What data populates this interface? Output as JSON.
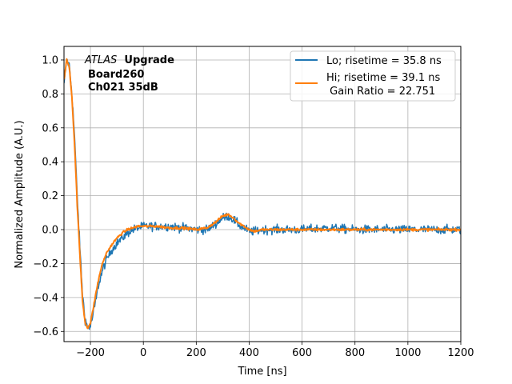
{
  "chart_data": {
    "type": "line",
    "xlabel": "Time [ns]",
    "ylabel": "Normalized Amplitude (A.U.)",
    "xlim": [
      -300,
      1200
    ],
    "ylim": [
      -0.66,
      1.08
    ],
    "xticks": [
      -200,
      0,
      200,
      400,
      600,
      800,
      1000,
      1200
    ],
    "yticks": [
      -0.6,
      -0.4,
      -0.2,
      0.0,
      0.2,
      0.4,
      0.6,
      0.8,
      1.0
    ],
    "xtick_labels": [
      "−200",
      "0",
      "200",
      "400",
      "600",
      "800",
      "1000",
      "1200"
    ],
    "ytick_labels": [
      "−0.6",
      "−0.4",
      "−0.2",
      "0.0",
      "0.2",
      "0.4",
      "0.6",
      "0.8",
      "1.0"
    ],
    "grid": true,
    "legend_position": "top-right",
    "annotation": {
      "italic": "ATLAS",
      "bold1": "Upgrade",
      "line2": "Board260",
      "line3": "Ch021 35dB"
    },
    "series": [
      {
        "name": "Lo; risetime = 35.8 ns",
        "color": "#1f77b4",
        "noise": 0.022,
        "x": [
          -300,
          -290,
          -280,
          -270,
          -260,
          -250,
          -240,
          -230,
          -220,
          -210,
          -200,
          -190,
          -180,
          -170,
          -160,
          -150,
          -140,
          -120,
          -100,
          -80,
          -60,
          -40,
          -20,
          0,
          50,
          100,
          150,
          200,
          240,
          270,
          300,
          320,
          340,
          360,
          380,
          400,
          420,
          450,
          500,
          600,
          700,
          800,
          900,
          1000,
          1100,
          1200
        ],
        "y": [
          0.85,
          1.0,
          0.97,
          0.8,
          0.55,
          0.2,
          -0.1,
          -0.38,
          -0.53,
          -0.58,
          -0.57,
          -0.5,
          -0.42,
          -0.33,
          -0.27,
          -0.22,
          -0.18,
          -0.12,
          -0.08,
          -0.05,
          -0.02,
          0.0,
          0.01,
          0.02,
          0.02,
          0.02,
          0.01,
          0.0,
          0.0,
          0.03,
          0.07,
          0.08,
          0.06,
          0.03,
          0.01,
          -0.01,
          -0.01,
          0.0,
          0.0,
          0.0,
          0.01,
          0.0,
          0.0,
          0.0,
          0.0,
          0.0
        ]
      },
      {
        "name": "Hi; risetime = 39.1 ns\n Gain Ratio = 22.751",
        "color": "#ff7f0e",
        "noise": 0.006,
        "x": [
          -300,
          -290,
          -280,
          -270,
          -260,
          -250,
          -240,
          -230,
          -220,
          -210,
          -200,
          -190,
          -180,
          -170,
          -160,
          -150,
          -140,
          -120,
          -100,
          -80,
          -60,
          -40,
          -20,
          0,
          50,
          100,
          150,
          200,
          240,
          270,
          300,
          320,
          340,
          360,
          380,
          400,
          420,
          450,
          500,
          600,
          700,
          800,
          900,
          1000,
          1100,
          1200
        ],
        "y": [
          0.88,
          1.0,
          0.96,
          0.78,
          0.5,
          0.15,
          -0.15,
          -0.42,
          -0.55,
          -0.58,
          -0.55,
          -0.47,
          -0.38,
          -0.3,
          -0.23,
          -0.18,
          -0.14,
          -0.09,
          -0.05,
          -0.02,
          0.0,
          0.01,
          0.02,
          0.02,
          0.02,
          0.01,
          0.01,
          0.0,
          0.01,
          0.04,
          0.08,
          0.09,
          0.07,
          0.04,
          0.02,
          0.0,
          -0.01,
          0.0,
          0.0,
          0.0,
          0.0,
          0.0,
          0.0,
          0.0,
          0.0,
          0.0
        ]
      }
    ]
  }
}
